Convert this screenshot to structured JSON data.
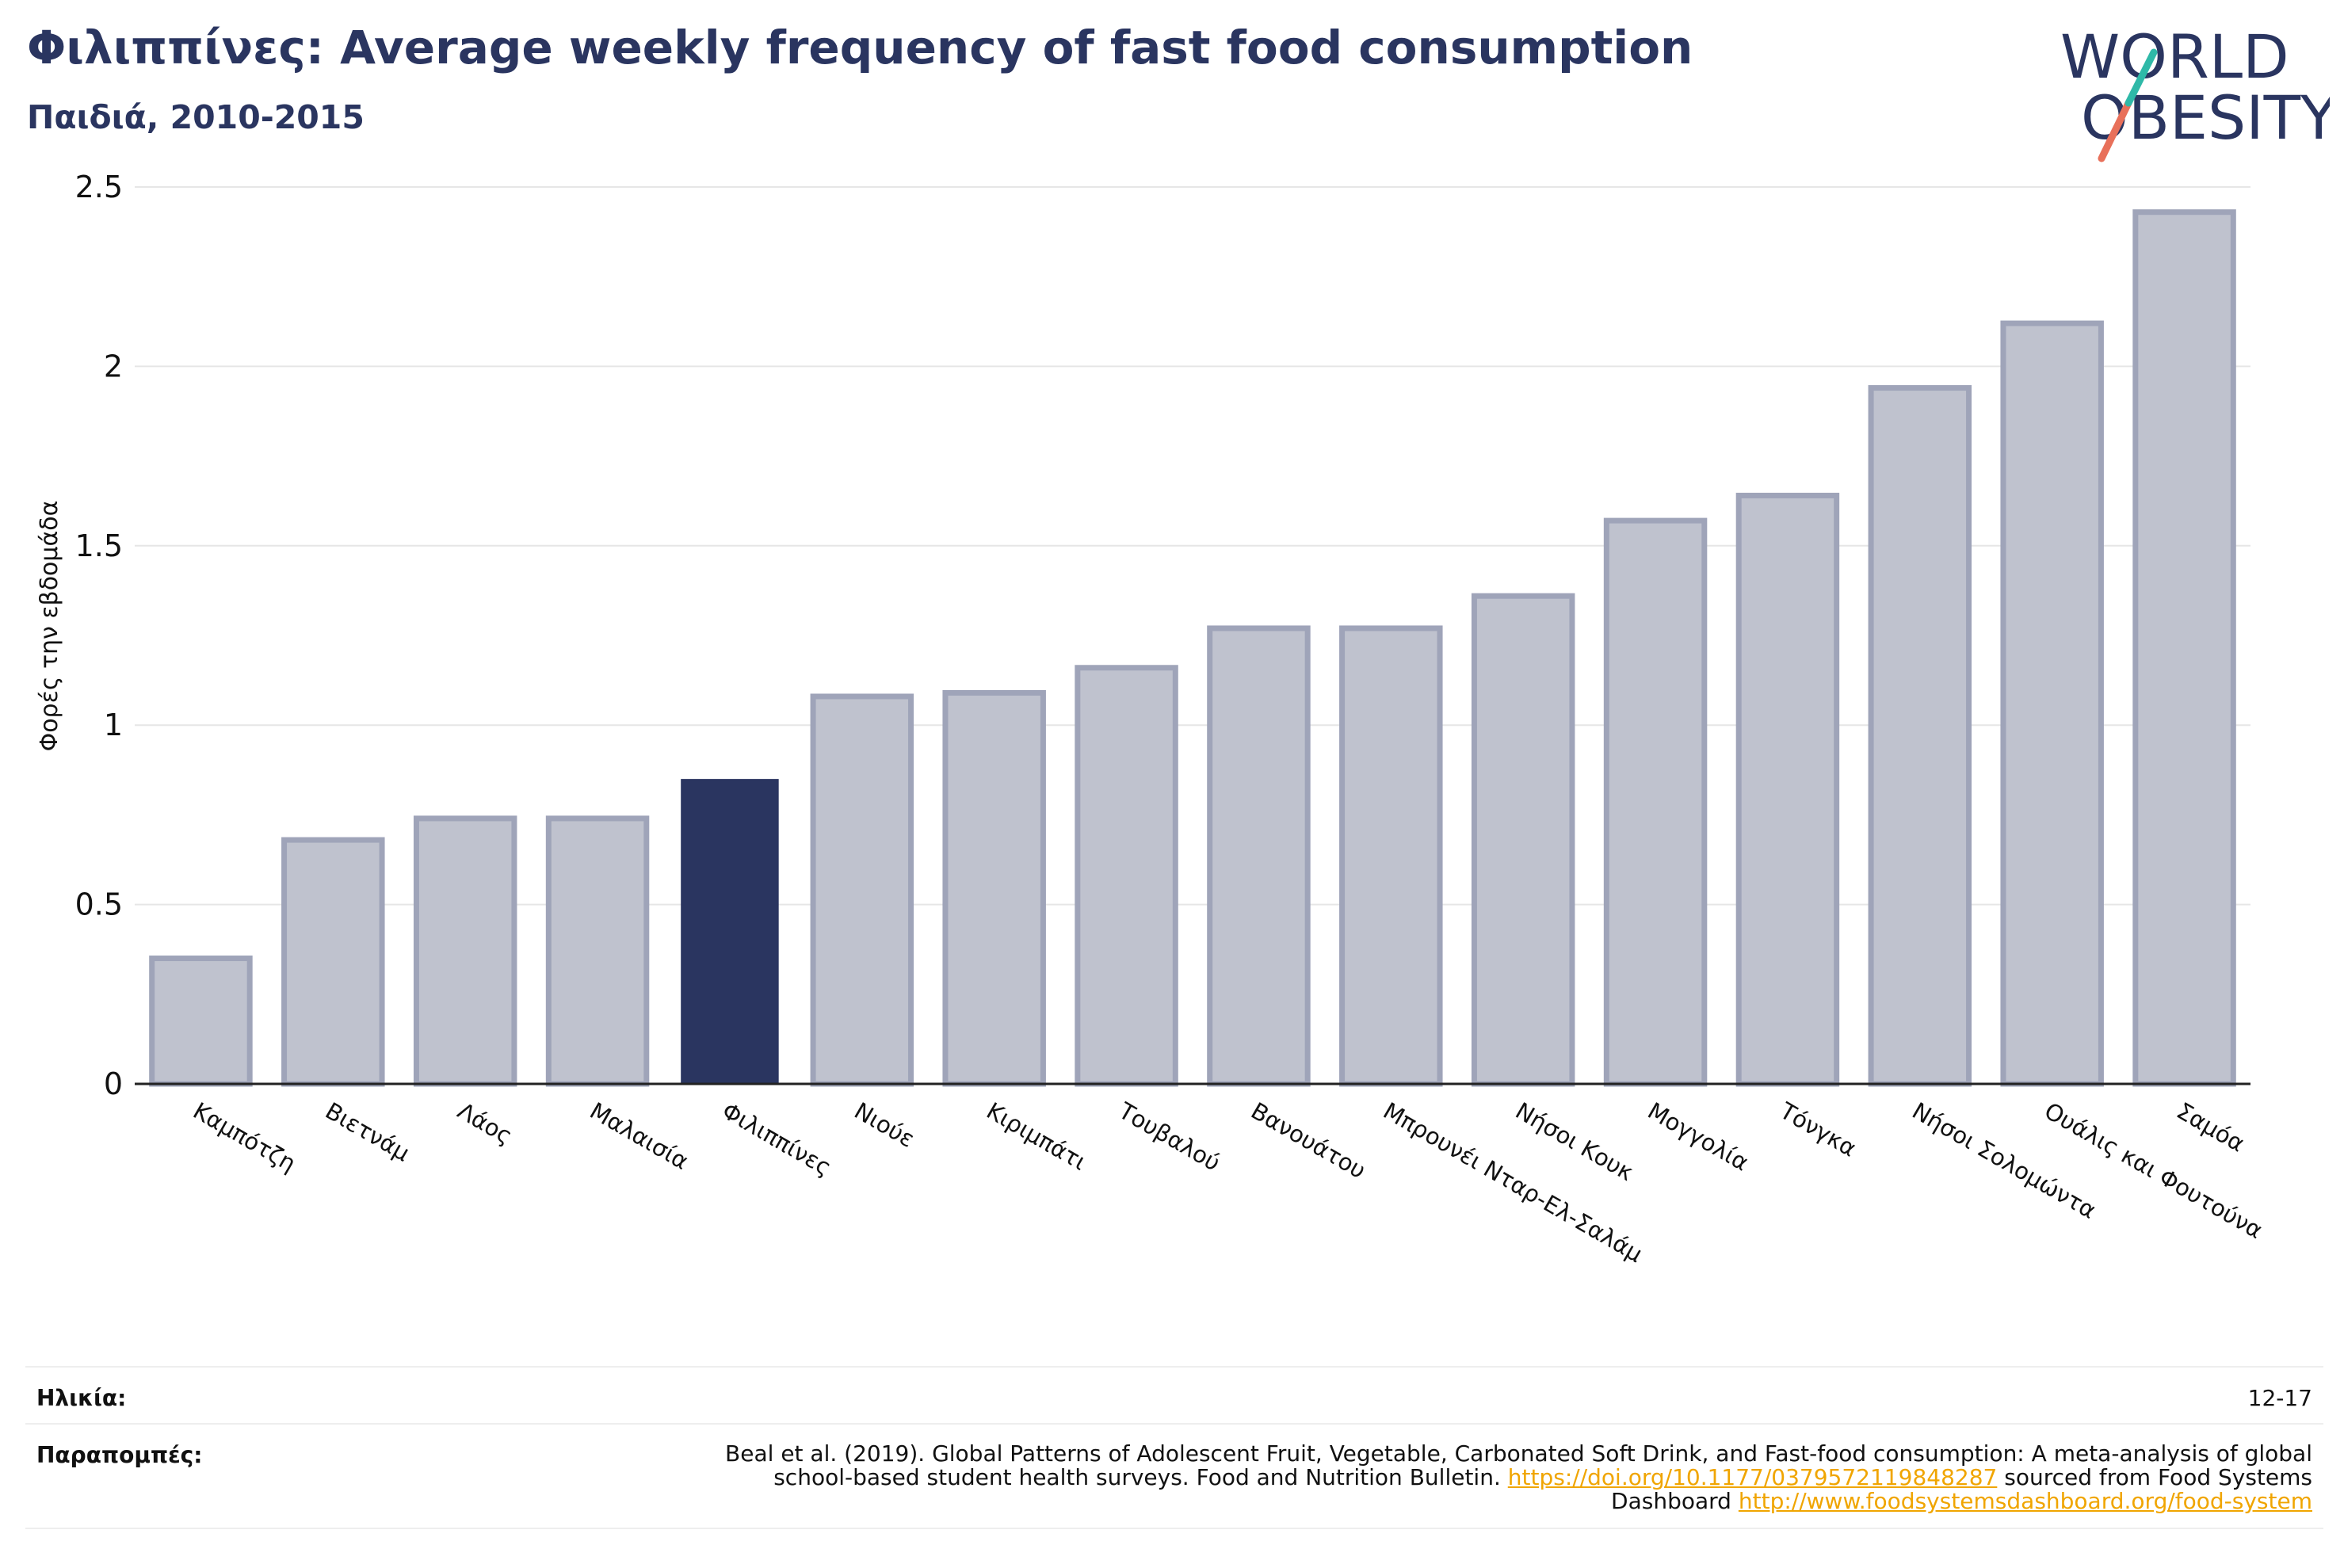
{
  "title": "Φιλιππίνες: Average weekly frequency of fast food consumption",
  "subtitle": "Παιδιά, 2010-2015",
  "logo": {
    "line1": "WORLD",
    "line2": "OBESITY"
  },
  "colors": {
    "highlight": "#2a3560",
    "bar_fill": "#bfc2ce",
    "bar_stroke": "#9fa4b9",
    "grid": "#e6e6e6",
    "link": "#f0a500"
  },
  "chart_data": {
    "type": "bar",
    "title": "Φιλιππίνες: Average weekly frequency of fast food consumption",
    "subtitle": "Παιδιά, 2010-2015",
    "xlabel": "",
    "ylabel": "Φορές την εβδομάδα",
    "ylim": [
      0,
      2.5
    ],
    "yticks": [
      0,
      0.5,
      1,
      1.5,
      2,
      2.5
    ],
    "ytick_labels": [
      "0",
      "0.5",
      "1",
      "1.5",
      "2",
      "2.5"
    ],
    "grid": true,
    "highlight": "Φιλιππίνες",
    "categories": [
      "Καμπότζη",
      "Βιετνάμ",
      "Λάος",
      "Μαλαισία",
      "Φιλιππίνες",
      "Νιούε",
      "Κιριμπάτι",
      "Τουβαλού",
      "Βανουάτου",
      "Μπρουνέι Νταρ-Ελ-Σαλάμ",
      "Νήσοι Κουκ",
      "Μογγολία",
      "Τόνγκα",
      "Νήσοι Σολομώντα",
      "Ουάλις και Φουτούνα",
      "Σαμόα"
    ],
    "values": [
      0.35,
      0.68,
      0.74,
      0.74,
      0.85,
      1.08,
      1.09,
      1.16,
      1.27,
      1.27,
      1.36,
      1.57,
      1.64,
      1.94,
      2.12,
      2.43
    ]
  },
  "footer": {
    "age_label": "Ηλικία:",
    "age_value": "12-17",
    "ref_label": "Παραπομπές:",
    "ref_text": "Beal et al. (2019). Global Patterns of Adolescent Fruit, Vegetable, Carbonated Soft Drink, and Fast-food consumption: A meta-analysis of global school-based student health surveys. Food and Nutrition Bulletin.",
    "ref_doi": "https://doi.org/10.1177/0379572119848287",
    "ref_mid": "sourced from Food Systems Dashboard",
    "ref_url": "http://www.foodsystemsdashboard.org/food-system"
  }
}
